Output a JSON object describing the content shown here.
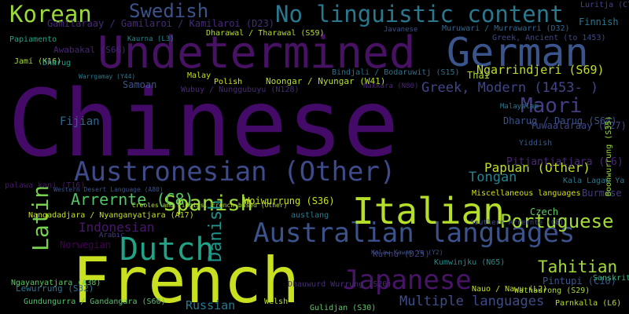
{
  "words": [
    {
      "text": "Chinese",
      "color": "#440a68"
    },
    {
      "text": "French",
      "color": "#c8e020"
    },
    {
      "text": "Undetermined",
      "color": "#471164"
    },
    {
      "text": "German",
      "color": "#3a548c"
    },
    {
      "text": "Australian languages",
      "color": "#3b528b"
    },
    {
      "text": "Italian",
      "color": "#b5de2b"
    },
    {
      "text": "Japanese",
      "color": "#481467"
    },
    {
      "text": "Austronesian (Other)",
      "color": "#3e4a89"
    },
    {
      "text": "Dutch",
      "color": "#20a386"
    },
    {
      "text": "Korean",
      "color": "#9bd93c"
    },
    {
      "text": "No linguistic content",
      "color": "#2a788e"
    },
    {
      "text": "Spanish",
      "color": "#9fda3a"
    },
    {
      "text": "Latin",
      "color": "#7ad151"
    },
    {
      "text": "Swedish",
      "color": "#3b528b"
    },
    {
      "text": "Maori",
      "color": "#433e85"
    },
    {
      "text": "Portuguese",
      "color": "#a5db36"
    },
    {
      "text": "Danish",
      "color": "#1f948c"
    },
    {
      "text": "Tahitian",
      "color": "#a2da37"
    },
    {
      "text": "Greek, Modern (1453- )",
      "color": "#404688"
    },
    {
      "text": "Arrernte (C8)",
      "color": "#54c568"
    },
    {
      "text": "Multiple languages",
      "color": "#3e4c8a"
    },
    {
      "text": "Papuan (Other)",
      "color": "#c2df23"
    },
    {
      "text": "Indonesian",
      "color": "#48186a"
    },
    {
      "text": "Tongan",
      "color": "#26828e"
    },
    {
      "text": "Ngarrindjeri (S69)",
      "color": "#c0df25"
    },
    {
      "text": "Fijian",
      "color": "#31678e"
    },
    {
      "text": "Russian",
      "color": "#29788e"
    },
    {
      "text": "Pitjantjatjara (C6)",
      "color": "#482878"
    },
    {
      "text": "Yuwaalaraay (D27)",
      "color": "#3f4889"
    },
    {
      "text": "Dharug / Darug (S64)",
      "color": "#3b528b"
    },
    {
      "text": "Gamilaraay / Gamilaroi / Kamilaroi (D23)",
      "color": "#472a7a"
    },
    {
      "text": "Noongar / Nyungar (W41)",
      "color": "#b8de29"
    },
    {
      "text": "Woiwurrung (S36)",
      "color": "#cae11f"
    },
    {
      "text": "Norwegian",
      "color": "#440154"
    },
    {
      "text": "Pintupi (C10)",
      "color": "#39568c"
    },
    {
      "text": "Thai",
      "color": "#b0dd2f"
    },
    {
      "text": "Samoan",
      "color": "#3b528b"
    },
    {
      "text": "Burmese",
      "color": "#433d84"
    },
    {
      "text": "Czech",
      "color": "#5ec962"
    },
    {
      "text": "Finnish",
      "color": "#2a768e"
    },
    {
      "text": "Awabakal (S66)",
      "color": "#482475"
    },
    {
      "text": "Kurnu (D25)",
      "color": "#443a83"
    },
    {
      "text": "Parnkalla (L6)",
      "color": "#b5de2b"
    },
    {
      "text": "Gundungurra / Gandangara (S60)",
      "color": "#52c569"
    },
    {
      "text": "Lewurrung (S32)",
      "color": "#2c728e"
    },
    {
      "text": "Wathaurong (S29)",
      "color": "#a8db34"
    },
    {
      "text": "Miscellaneous languages",
      "color": "#d8e219"
    },
    {
      "text": "Arabic",
      "color": "#433e85"
    },
    {
      "text": "Welsh",
      "color": "#b5de2b"
    },
    {
      "text": "Gulidjan (S30)",
      "color": "#5ec962"
    },
    {
      "text": "Sanskrit",
      "color": "#35b779"
    },
    {
      "text": "Dhauwurd Wurrung (S20)",
      "color": "#472c7a"
    },
    {
      "text": "Kumwinjku (N65)",
      "color": "#228c8d"
    },
    {
      "text": "Bindjali / Bodaruwitj (S15)",
      "color": "#2d708e"
    },
    {
      "text": "Muruwari / Murrawarri (D32)",
      "color": "#31678e"
    },
    {
      "text": "Dharawal / Tharawal (S59)",
      "color": "#b5de2b"
    },
    {
      "text": "Wubuy / Nunggubuyu (N128)",
      "color": "#482878"
    },
    {
      "text": "Ngayanyatjara (A38)",
      "color": "#5ec962"
    },
    {
      "text": "Luritja (C7.1)",
      "color": "#404688"
    },
    {
      "text": "Polish",
      "color": "#d8e219"
    },
    {
      "text": "Malay",
      "color": "#c2df23"
    },
    {
      "text": "Yiddish",
      "color": "#38598c"
    },
    {
      "text": "Nauo / Nawu (L2)",
      "color": "#c2df23"
    },
    {
      "text": "austlang",
      "color": "#2a788e"
    },
    {
      "text": "Nangadadjara / Nyanganyatjara (A17)",
      "color": "#c8e020"
    },
    {
      "text": "Western Desert Language (A80)",
      "color": "#3b528b"
    },
    {
      "text": "Greek, Ancient (to 1453)",
      "color": "#3e4989"
    },
    {
      "text": "Jamí (K16)",
      "color": "#a2da37"
    },
    {
      "text": "Papiamento",
      "color": "#20a486"
    },
    {
      "text": "Dharug",
      "color": "#1f9e89"
    },
    {
      "text": "Boonwurrung (S35)",
      "color": "#9bd93c"
    },
    {
      "text": "Malayalam",
      "color": "#2a788e"
    },
    {
      "text": "Kaurna (L3)",
      "color": "#25848e"
    },
    {
      "text": "palawa kani (T16)",
      "color": "#48186a"
    },
    {
      "text": "Javanese",
      "color": "#3b528b"
    },
    {
      "text": "Nakkara (N80)",
      "color": "#482475"
    },
    {
      "text": "Southern Arrernte (C8)",
      "color": "#3e4a89"
    },
    {
      "text": "Kala Lagaw Ya (Y1)",
      "color": "#2a788e"
    },
    {
      "text": "Kalaw Kawaw Ya (Y2)",
      "color": "#3b528b"
    },
    {
      "text": "Creoles and Pidgins, French-based (Other)",
      "color": "#b5de2b"
    },
    {
      "text": "Warrgamay (Y44)",
      "color": "#2a788e"
    }
  ]
}
